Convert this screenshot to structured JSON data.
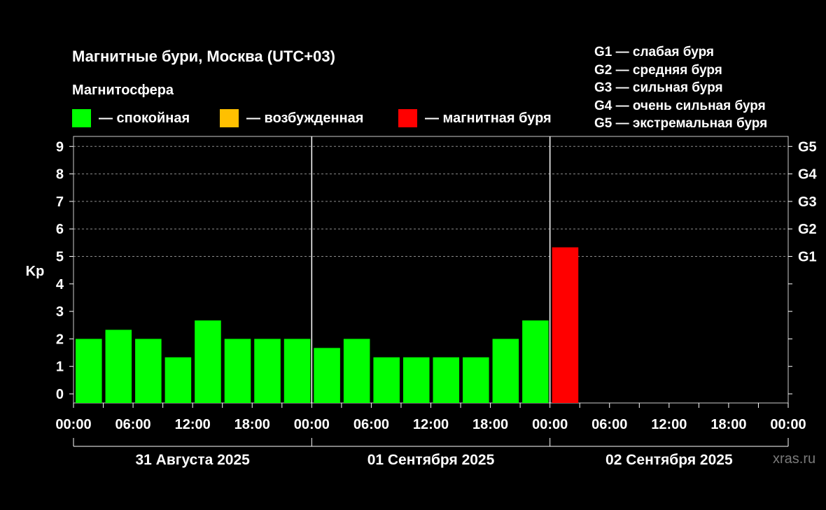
{
  "chart_data": {
    "type": "bar",
    "title": "Магнитные бури, Москва (UTC+03)",
    "ylabel": "Kp",
    "ylim": [
      0,
      9
    ],
    "yticks": [
      "0",
      "1",
      "2",
      "3",
      "4",
      "5",
      "6",
      "7",
      "8",
      "9"
    ],
    "storm_levels": [
      {
        "label": "G1",
        "kp": 5
      },
      {
        "label": "G2",
        "kp": 6
      },
      {
        "label": "G3",
        "kp": 7
      },
      {
        "label": "G4",
        "kp": 8
      },
      {
        "label": "G5",
        "kp": 9
      }
    ],
    "xtick_labels": [
      "00:00",
      "06:00",
      "12:00",
      "18:00",
      "00:00",
      "06:00",
      "12:00",
      "18:00",
      "00:00",
      "06:00",
      "12:00",
      "18:00",
      "00:00"
    ],
    "days": [
      "31 Августа 2025",
      "01 Сентября 2025",
      "02 Сентября 2025"
    ],
    "bar_hours_per_interval": 3,
    "values": [
      2,
      2.33,
      2,
      1.33,
      2.67,
      2,
      2,
      2,
      1.67,
      2,
      1.33,
      1.33,
      1.33,
      1.33,
      2,
      2.67,
      5.33
    ],
    "status": [
      "calm",
      "calm",
      "calm",
      "calm",
      "calm",
      "calm",
      "calm",
      "calm",
      "calm",
      "calm",
      "calm",
      "calm",
      "calm",
      "calm",
      "calm",
      "calm",
      "storm"
    ],
    "grid": true
  },
  "legend": {
    "heading": "Магнитосфера",
    "items": [
      {
        "key": "calm",
        "label": "— спокойная",
        "color": "#00ff00"
      },
      {
        "key": "excited",
        "label": "— возбужденная",
        "color": "#ffc000"
      },
      {
        "key": "storm",
        "label": "— магнитная буря",
        "color": "#ff0000"
      }
    ]
  },
  "storm_scale": [
    "G1 — слабая буря",
    "G2 — средняя буря",
    "G3 — сильная буря",
    "G4 — очень сильная буря",
    "G5 — экстремальная буря"
  ],
  "watermark": "xras.ru"
}
